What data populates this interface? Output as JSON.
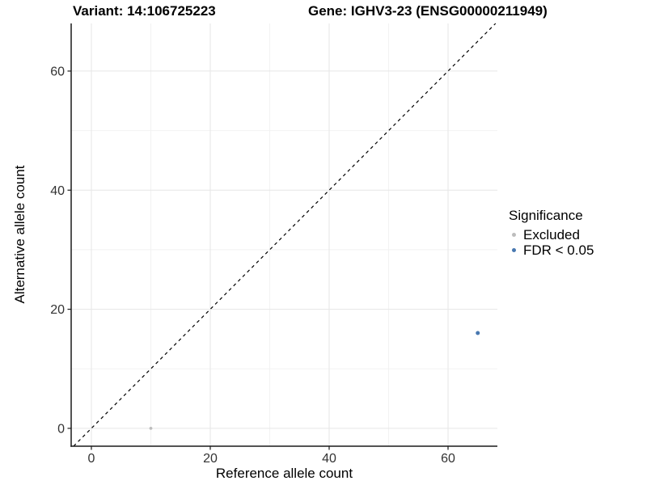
{
  "titles": {
    "variant": "Variant: 14:106725223",
    "gene": "Gene: IGHV3-23 (ENSG00000211949)"
  },
  "chart_data": {
    "type": "scatter",
    "xlabel": "Reference allele count",
    "ylabel": "Alternative allele count",
    "xlim": [
      -3.4,
      68.3
    ],
    "ylim": [
      -3.0,
      68.0
    ],
    "x_ticks": [
      0,
      20,
      40,
      60
    ],
    "y_ticks": [
      0,
      20,
      40,
      60
    ],
    "x_minor_ticks": [
      10,
      30,
      50
    ],
    "y_minor_ticks": [
      10,
      30,
      50
    ],
    "grid": true,
    "identity_line": {
      "type": "y=x",
      "style": "dashed",
      "color": "#000000"
    },
    "series": [
      {
        "name": "Excluded",
        "color": "#bdbdbd",
        "point_radius": 1.9,
        "points": [
          {
            "x": 10,
            "y": 0
          }
        ]
      },
      {
        "name": "FDR < 0.05",
        "color": "#4878b0",
        "point_radius": 2.5,
        "points": [
          {
            "x": 65,
            "y": 16
          }
        ]
      }
    ],
    "legend": {
      "title": "Significance",
      "position": "right"
    }
  },
  "style_colors": {
    "grid_major": "#e6e6e6",
    "grid_minor": "#f2f2f2",
    "axis_line": "#1a1a1a",
    "tick_label": "#333333"
  }
}
